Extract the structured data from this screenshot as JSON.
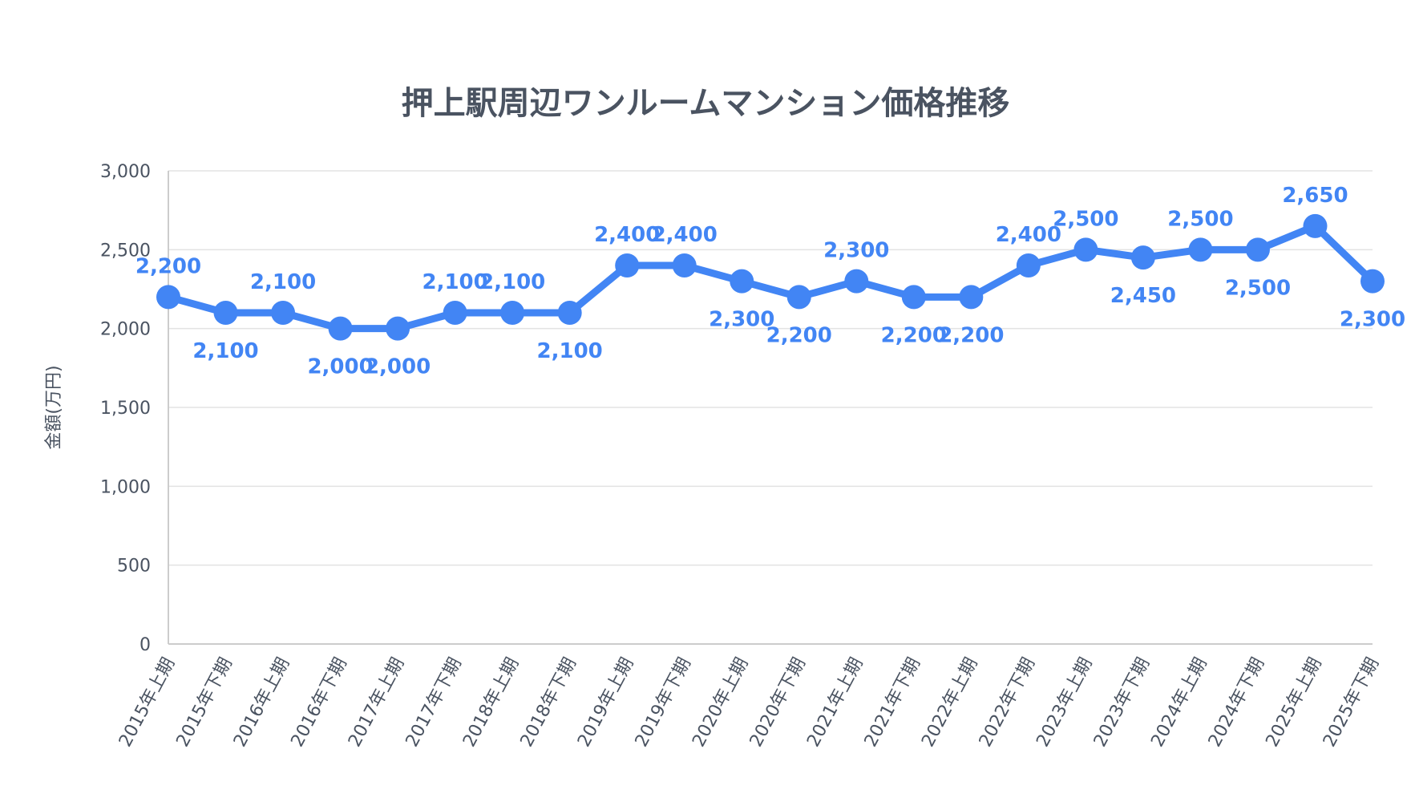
{
  "chart_data": {
    "type": "line",
    "title": "押上駅周辺ワンルームマンション価格推移",
    "xlabel": "",
    "ylabel": "金額(万円)",
    "ylim": [
      0,
      3000
    ],
    "yticks": [
      0,
      500,
      1000,
      1500,
      2000,
      2500,
      3000
    ],
    "ytick_labels": [
      "0",
      "500",
      "1,000",
      "1,500",
      "2,000",
      "2,500",
      "3,000"
    ],
    "grid": true,
    "legend": "none",
    "color": "#4285f4",
    "categories": [
      "2015年上期",
      "2015年下期",
      "2016年上期",
      "2016年下期",
      "2017年上期",
      "2017年下期",
      "2018年上期",
      "2018年下期",
      "2019年上期",
      "2019年下期",
      "2020年上期",
      "2020年下期",
      "2021年上期",
      "2021年下期",
      "2022年上期",
      "2022年下期",
      "2023年上期",
      "2023年下期",
      "2024年上期",
      "2024年下期",
      "2025年上期",
      "2025年下期"
    ],
    "series": [
      {
        "values": [
          2200,
          2100,
          2100,
          2000,
          2000,
          2100,
          2100,
          2100,
          2400,
          2400,
          2300,
          2200,
          2300,
          2200,
          2200,
          2400,
          2500,
          2450,
          2500,
          2500,
          2650,
          2300
        ],
        "value_labels": [
          "2,200",
          "2,100",
          "2,100",
          "2,000",
          "2,000",
          "2,100",
          "2,100",
          "2,100",
          "2,400",
          "2,400",
          "2,300",
          "2,200",
          "2,300",
          "2,200",
          "2,200",
          "2,400",
          "2,500",
          "2,450",
          "2,500",
          "2,500",
          "2,650",
          "2,300"
        ],
        "label_side": [
          "above",
          "below",
          "above",
          "below",
          "below",
          "above",
          "above",
          "below",
          "above",
          "above",
          "below",
          "below",
          "above",
          "below",
          "below",
          "above",
          "above",
          "below",
          "above",
          "below",
          "above",
          "below"
        ]
      }
    ]
  }
}
